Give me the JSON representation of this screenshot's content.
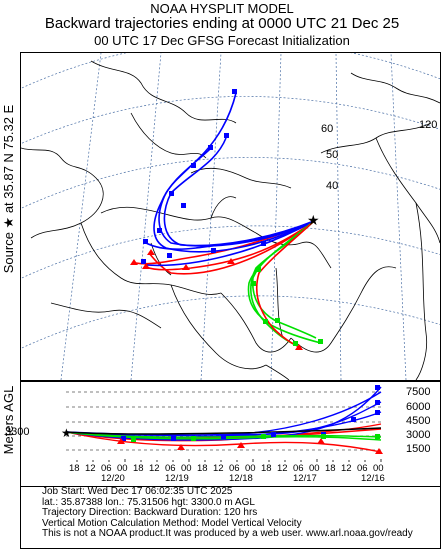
{
  "header": {
    "line1": "NOAA HYSPLIT MODEL",
    "line2": "Backward trajectories ending at 0000 UTC 21 Dec 25",
    "line3": "00 UTC 17 Dec    GFSG  Forecast Initialization"
  },
  "side_label": "Source ★ at   35.87 N   75.32 E",
  "map": {
    "lat_labels": [
      "60",
      "50",
      "40",
      "120"
    ],
    "source_marker": "star-icon"
  },
  "profile": {
    "ylabel": "Meters AGL",
    "start_height": "3300",
    "right_ticks": [
      "7500",
      "6000",
      "4500",
      "3000",
      "1500"
    ],
    "time_ticks_top": [
      "18",
      "12",
      "06",
      "00",
      "18",
      "12",
      "06",
      "00",
      "18",
      "12",
      "06",
      "00",
      "18",
      "12",
      "06",
      "00",
      "18",
      "12",
      "06",
      "00"
    ],
    "date_labels": [
      "12/20",
      "12/19",
      "12/18",
      "12/17",
      "12/16"
    ]
  },
  "info": {
    "line1": "Job Start: Wed Dec 17 06:02:35 UTC 2025",
    "line2": "lat.: 35.87388   lon.: 75.31506   hgt: 3300.0 m AGL",
    "line3": "Trajectory Direction: Backward        Duration: 120 hrs",
    "line4": "Vertical Motion Calculation Method: Model Vertical Velocity",
    "line5": "This is not a NOAA product.It was produced by a web user. www.arl.noaa.gov/ready"
  },
  "colors": {
    "red": "#ff0000",
    "blue": "#0000ff",
    "green": "#00e000",
    "dark": "#000000"
  }
}
